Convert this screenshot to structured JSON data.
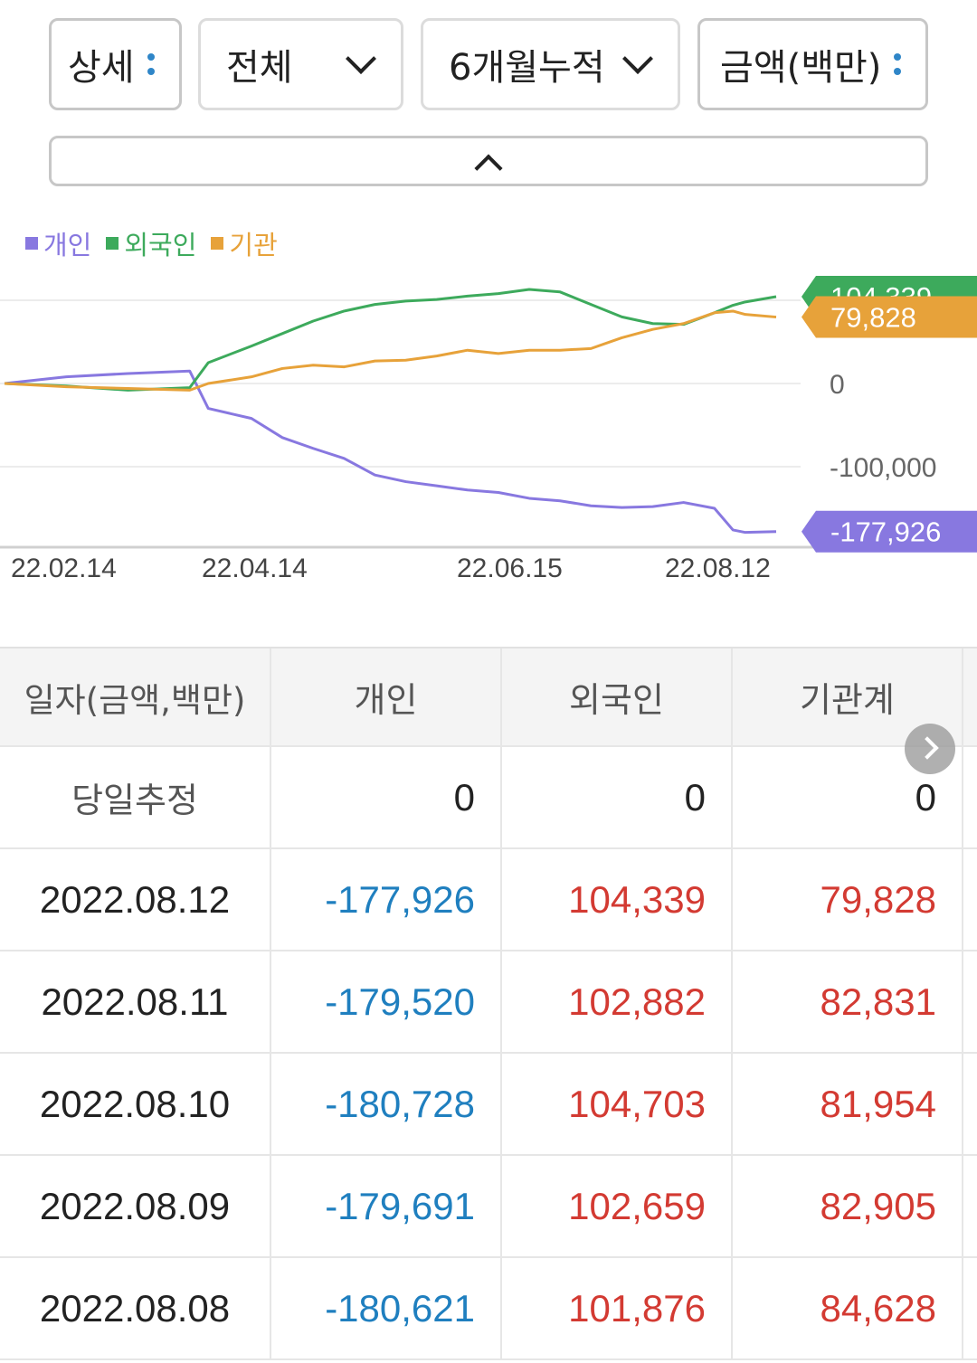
{
  "filters": {
    "detail": "상세",
    "scope": "전체",
    "period": "6개월누적",
    "unit": "금액(백만)"
  },
  "colors": {
    "individual": "#8878e0",
    "foreign": "#3daa5c",
    "institution": "#e7a23a",
    "negative_text": "#1f7fbf",
    "positive_text": "#d33a32"
  },
  "legend": [
    "개인",
    "외국인",
    "기관"
  ],
  "chart_data": {
    "type": "line",
    "ylim": [
      -200000,
      120000
    ],
    "yticks": [
      "0",
      "-100,000"
    ],
    "xticks": [
      "22.02.14",
      "22.04.14",
      "22.06.15",
      "22.08.12"
    ],
    "grid": true,
    "series": [
      {
        "name": "개인",
        "x": [
          0,
          10,
          20,
          30,
          33,
          40,
          45,
          50,
          55,
          60,
          65,
          70,
          75,
          80,
          85,
          90,
          95,
          100,
          105,
          110,
          115,
          118,
          120,
          125
        ],
        "values": [
          0,
          8000,
          12000,
          15000,
          -30000,
          -42000,
          -65000,
          -78000,
          -90000,
          -110000,
          -118000,
          -123000,
          -128000,
          -131000,
          -138000,
          -141000,
          -147000,
          -149000,
          -148000,
          -143000,
          -150000,
          -176000,
          -179000,
          -177926
        ]
      },
      {
        "name": "외국인",
        "x": [
          0,
          10,
          20,
          30,
          33,
          40,
          45,
          50,
          55,
          60,
          65,
          70,
          75,
          80,
          85,
          90,
          95,
          100,
          105,
          110,
          115,
          118,
          120,
          125
        ],
        "values": [
          0,
          -3000,
          -8000,
          -5000,
          25000,
          45000,
          60000,
          75000,
          87000,
          95000,
          99000,
          101000,
          105000,
          108000,
          113000,
          110000,
          95000,
          80000,
          72000,
          71000,
          85000,
          94000,
          98000,
          104339
        ]
      },
      {
        "name": "기관",
        "x": [
          0,
          10,
          20,
          30,
          33,
          40,
          45,
          50,
          55,
          60,
          65,
          70,
          75,
          80,
          85,
          90,
          95,
          100,
          105,
          110,
          115,
          118,
          120,
          125
        ],
        "values": [
          0,
          -4000,
          -6000,
          -8000,
          0,
          8000,
          18000,
          22000,
          20000,
          27000,
          28000,
          33000,
          40000,
          36000,
          40000,
          40000,
          42000,
          55000,
          65000,
          72000,
          85000,
          87000,
          83000,
          79828
        ]
      }
    ],
    "tags": [
      {
        "series": "외국인",
        "label": "104,339"
      },
      {
        "series": "기관",
        "label": "79,828"
      },
      {
        "series": "개인",
        "label": "-177,926"
      }
    ]
  },
  "table": {
    "headers": [
      "일자(금액,백만)",
      "개인",
      "외국인",
      "기관계"
    ],
    "today": {
      "date": "당일추정",
      "individual": "0",
      "foreign": "0",
      "institution": "0"
    },
    "rows": [
      {
        "date": "2022.08.12",
        "individual": "-177,926",
        "foreign": "104,339",
        "institution": "79,828"
      },
      {
        "date": "2022.08.11",
        "individual": "-179,520",
        "foreign": "102,882",
        "institution": "82,831"
      },
      {
        "date": "2022.08.10",
        "individual": "-180,728",
        "foreign": "104,703",
        "institution": "81,954"
      },
      {
        "date": "2022.08.09",
        "individual": "-179,691",
        "foreign": "102,659",
        "institution": "82,905"
      },
      {
        "date": "2022.08.08",
        "individual": "-180,621",
        "foreign": "101,876",
        "institution": "84,628"
      }
    ]
  }
}
